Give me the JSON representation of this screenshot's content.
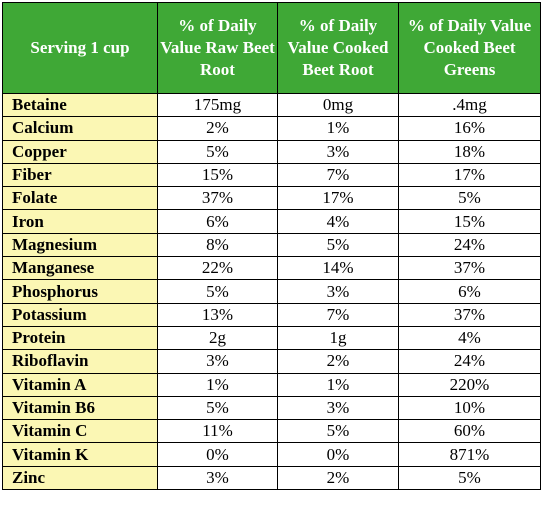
{
  "table": {
    "headers": [
      "Serving 1 cup",
      "% of Daily Value Raw Beet Root",
      "% of Daily Value Cooked Beet Root",
      "% of Daily Value Cooked Beet Greens"
    ],
    "rows": [
      [
        "Betaine",
        "175mg",
        "0mg",
        ".4mg"
      ],
      [
        "Calcium",
        "2%",
        "1%",
        "16%"
      ],
      [
        "Copper",
        "5%",
        "3%",
        "18%"
      ],
      [
        "Fiber",
        "15%",
        "7%",
        "17%"
      ],
      [
        "Folate",
        "37%",
        "17%",
        "5%"
      ],
      [
        "Iron",
        "6%",
        "4%",
        "15%"
      ],
      [
        "Magnesium",
        "8%",
        "5%",
        "24%"
      ],
      [
        "Manganese",
        "22%",
        "14%",
        "37%"
      ],
      [
        "Phosphorus",
        "5%",
        "3%",
        "6%"
      ],
      [
        "Potassium",
        "13%",
        "7%",
        "37%"
      ],
      [
        "Protein",
        "2g",
        "1g",
        "4%"
      ],
      [
        "Riboflavin",
        "3%",
        "2%",
        "24%"
      ],
      [
        "Vitamin A",
        "1%",
        "1%",
        "220%"
      ],
      [
        "Vitamin B6",
        "5%",
        "3%",
        "10%"
      ],
      [
        "Vitamin C",
        "11%",
        "5%",
        "60%"
      ],
      [
        "Vitamin K",
        "0%",
        "0%",
        "871%"
      ],
      [
        "Zinc",
        "3%",
        "2%",
        "5%"
      ]
    ]
  },
  "colors": {
    "header_bg": "#3fa836",
    "header_text": "#ffffff",
    "nutrient_bg": "#fbf7b4"
  }
}
